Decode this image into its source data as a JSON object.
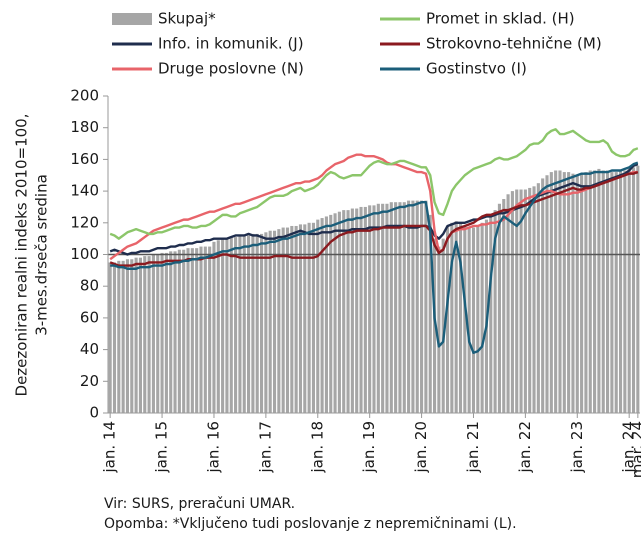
{
  "chart_data": {
    "type": "line",
    "y_label": [
      "Dezezoniran realni indeks 2010=100,",
      "3-mes.drseča sredina"
    ],
    "notes": [
      "Vir: SURS, preračuni UMAR.",
      "Opomba: *Vključeno tudi poslovanje z nepremičninami (L)."
    ],
    "ylim": [
      0,
      200
    ],
    "yticks": [
      0,
      20,
      40,
      60,
      80,
      100,
      120,
      140,
      160,
      180,
      200
    ],
    "reference_line": 100,
    "categories": [
      "jan. 14",
      null,
      null,
      null,
      null,
      null,
      null,
      null,
      null,
      null,
      null,
      null,
      "jan. 15",
      null,
      null,
      null,
      null,
      null,
      null,
      null,
      null,
      null,
      null,
      null,
      "jan. 16",
      null,
      null,
      null,
      null,
      null,
      null,
      null,
      null,
      null,
      null,
      null,
      "jan. 17",
      null,
      null,
      null,
      null,
      null,
      null,
      null,
      null,
      null,
      null,
      null,
      "jan. 18",
      null,
      null,
      null,
      null,
      null,
      null,
      null,
      null,
      null,
      null,
      null,
      "jan. 19",
      null,
      null,
      null,
      null,
      null,
      null,
      null,
      null,
      null,
      null,
      null,
      "jan. 20",
      null,
      null,
      null,
      null,
      null,
      null,
      null,
      null,
      null,
      null,
      null,
      "jan. 21",
      null,
      null,
      null,
      null,
      null,
      null,
      null,
      null,
      null,
      null,
      null,
      "jan. 22",
      null,
      null,
      null,
      null,
      null,
      null,
      null,
      null,
      null,
      null,
      null,
      "jan. 23",
      null,
      null,
      null,
      null,
      null,
      null,
      null,
      null,
      null,
      null,
      null,
      "jan. 24",
      null,
      "mar. 24"
    ],
    "series": [
      {
        "name": "Skupaj*",
        "type": "bar",
        "color": "#a6a6a6",
        "values": [
          95,
          95,
          96,
          96,
          97,
          97,
          98,
          98,
          99,
          99,
          100,
          100,
          101,
          101,
          102,
          102,
          103,
          103,
          104,
          104,
          104,
          105,
          105,
          105,
          108,
          109,
          110,
          110,
          111,
          111,
          112,
          112,
          112,
          113,
          113,
          113,
          114,
          115,
          115,
          116,
          117,
          117,
          118,
          118,
          119,
          119,
          120,
          120,
          122,
          123,
          124,
          125,
          126,
          127,
          128,
          128,
          129,
          129,
          130,
          130,
          131,
          131,
          132,
          132,
          132,
          133,
          133,
          133,
          133,
          134,
          134,
          134,
          134,
          134,
          125,
          110,
          105,
          110,
          118,
          120,
          121,
          120,
          118,
          117,
          117,
          118,
          120,
          122,
          125,
          128,
          132,
          135,
          138,
          140,
          141,
          141,
          141,
          142,
          143,
          145,
          148,
          150,
          152,
          153,
          153,
          152,
          152,
          151,
          150,
          151,
          152,
          153,
          153,
          154,
          153,
          153,
          152,
          152,
          153,
          153,
          154,
          155,
          156
        ]
      },
      {
        "name": "Info. in komunik. (J)",
        "type": "line",
        "color": "#1f2d4d",
        "values": [
          102,
          103,
          102,
          101,
          100,
          101,
          101,
          102,
          102,
          102,
          103,
          104,
          104,
          104,
          105,
          105,
          106,
          106,
          107,
          107,
          108,
          108,
          109,
          109,
          110,
          110,
          110,
          110,
          111,
          112,
          112,
          112,
          113,
          112,
          112,
          111,
          110,
          110,
          110,
          111,
          111,
          112,
          113,
          114,
          115,
          114,
          113,
          113,
          113,
          114,
          114,
          114,
          115,
          115,
          115,
          115,
          116,
          116,
          116,
          116,
          117,
          117,
          117,
          117,
          118,
          118,
          118,
          118,
          118,
          117,
          117,
          117,
          118,
          118,
          117,
          112,
          110,
          113,
          118,
          119,
          120,
          120,
          120,
          121,
          122,
          122,
          123,
          124,
          124,
          125,
          126,
          126,
          127,
          128,
          129,
          130,
          131,
          133,
          135,
          137,
          138,
          139,
          140,
          141,
          142,
          143,
          144,
          145,
          144,
          143,
          143,
          143,
          144,
          145,
          146,
          147,
          148,
          149,
          150,
          151,
          153,
          156,
          157
        ]
      },
      {
        "name": "Druge poslovne (N)",
        "type": "line",
        "color": "#e8646a",
        "values": [
          97,
          99,
          101,
          103,
          105,
          106,
          107,
          109,
          111,
          113,
          115,
          116,
          117,
          118,
          119,
          120,
          121,
          122,
          122,
          123,
          124,
          125,
          126,
          127,
          127,
          128,
          129,
          130,
          131,
          132,
          132,
          133,
          134,
          135,
          136,
          137,
          138,
          139,
          140,
          141,
          142,
          143,
          144,
          145,
          145,
          146,
          146,
          147,
          148,
          150,
          153,
          155,
          157,
          158,
          159,
          161,
          162,
          163,
          163,
          162,
          162,
          162,
          161,
          160,
          158,
          157,
          157,
          156,
          155,
          154,
          153,
          152,
          152,
          151,
          140,
          115,
          102,
          103,
          110,
          114,
          115,
          116,
          116,
          117,
          118,
          118,
          119,
          119,
          120,
          120,
          121,
          122,
          125,
          128,
          131,
          133,
          135,
          136,
          137,
          138,
          139,
          140,
          140,
          139,
          138,
          138,
          138,
          139,
          139,
          140,
          141,
          142,
          143,
          144,
          145,
          146,
          147,
          148,
          149,
          150,
          151,
          152,
          152
        ]
      },
      {
        "name": "Promet in sklad. (H)",
        "type": "line",
        "color": "#8cc66a",
        "values": [
          113,
          112,
          110,
          112,
          114,
          115,
          116,
          115,
          114,
          113,
          113,
          114,
          114,
          115,
          116,
          117,
          117,
          118,
          118,
          117,
          117,
          118,
          118,
          119,
          121,
          123,
          125,
          125,
          124,
          124,
          126,
          127,
          128,
          129,
          130,
          132,
          134,
          136,
          137,
          137,
          137,
          138,
          140,
          141,
          142,
          140,
          141,
          142,
          144,
          147,
          150,
          152,
          151,
          149,
          148,
          149,
          150,
          150,
          150,
          153,
          156,
          158,
          159,
          158,
          157,
          157,
          158,
          159,
          159,
          158,
          157,
          156,
          155,
          155,
          150,
          133,
          126,
          125,
          132,
          140,
          144,
          147,
          150,
          152,
          154,
          155,
          156,
          157,
          158,
          160,
          161,
          160,
          160,
          161,
          162,
          164,
          166,
          169,
          170,
          170,
          172,
          176,
          178,
          179,
          176,
          176,
          177,
          178,
          176,
          174,
          172,
          171,
          171,
          171,
          172,
          170,
          165,
          163,
          162,
          162,
          163,
          166,
          167
        ]
      },
      {
        "name": "Strokovno-tehnične (M)",
        "type": "line",
        "color": "#8b1a1f",
        "values": [
          95,
          94,
          93,
          93,
          93,
          93,
          94,
          94,
          94,
          95,
          95,
          95,
          95,
          96,
          96,
          96,
          96,
          96,
          97,
          97,
          97,
          97,
          98,
          98,
          98,
          99,
          100,
          100,
          99,
          99,
          98,
          98,
          98,
          98,
          98,
          98,
          98,
          98,
          99,
          99,
          99,
          99,
          98,
          98,
          98,
          98,
          98,
          98,
          99,
          102,
          105,
          108,
          110,
          112,
          113,
          114,
          114,
          115,
          115,
          115,
          115,
          116,
          116,
          117,
          117,
          117,
          117,
          117,
          118,
          118,
          118,
          118,
          118,
          118,
          115,
          106,
          101,
          103,
          110,
          114,
          116,
          117,
          118,
          119,
          120,
          122,
          124,
          125,
          125,
          126,
          127,
          128,
          128,
          129,
          130,
          131,
          131,
          132,
          133,
          134,
          135,
          136,
          137,
          138,
          139,
          140,
          141,
          142,
          141,
          141,
          142,
          142,
          143,
          144,
          145,
          146,
          147,
          148,
          149,
          150,
          151,
          151,
          152
        ]
      },
      {
        "name": "Gostinstvo (I)",
        "type": "line",
        "color": "#1b5e7a",
        "values": [
          93,
          93,
          92,
          92,
          91,
          91,
          91,
          92,
          92,
          92,
          93,
          93,
          93,
          94,
          94,
          95,
          95,
          96,
          96,
          97,
          97,
          98,
          98,
          99,
          100,
          101,
          102,
          102,
          103,
          104,
          104,
          105,
          105,
          106,
          106,
          107,
          107,
          108,
          108,
          109,
          110,
          110,
          111,
          112,
          113,
          113,
          114,
          115,
          116,
          117,
          118,
          118,
          119,
          120,
          121,
          122,
          122,
          123,
          123,
          124,
          125,
          126,
          126,
          127,
          127,
          128,
          129,
          130,
          130,
          131,
          131,
          132,
          133,
          133,
          115,
          60,
          42,
          45,
          70,
          95,
          108,
          95,
          70,
          45,
          38,
          39,
          42,
          55,
          85,
          110,
          120,
          124,
          122,
          120,
          118,
          121,
          126,
          130,
          134,
          138,
          141,
          143,
          144,
          145,
          146,
          147,
          148,
          149,
          150,
          151,
          151,
          151,
          152,
          152,
          152,
          152,
          153,
          153,
          153,
          154,
          155,
          157,
          158
        ]
      }
    ]
  }
}
